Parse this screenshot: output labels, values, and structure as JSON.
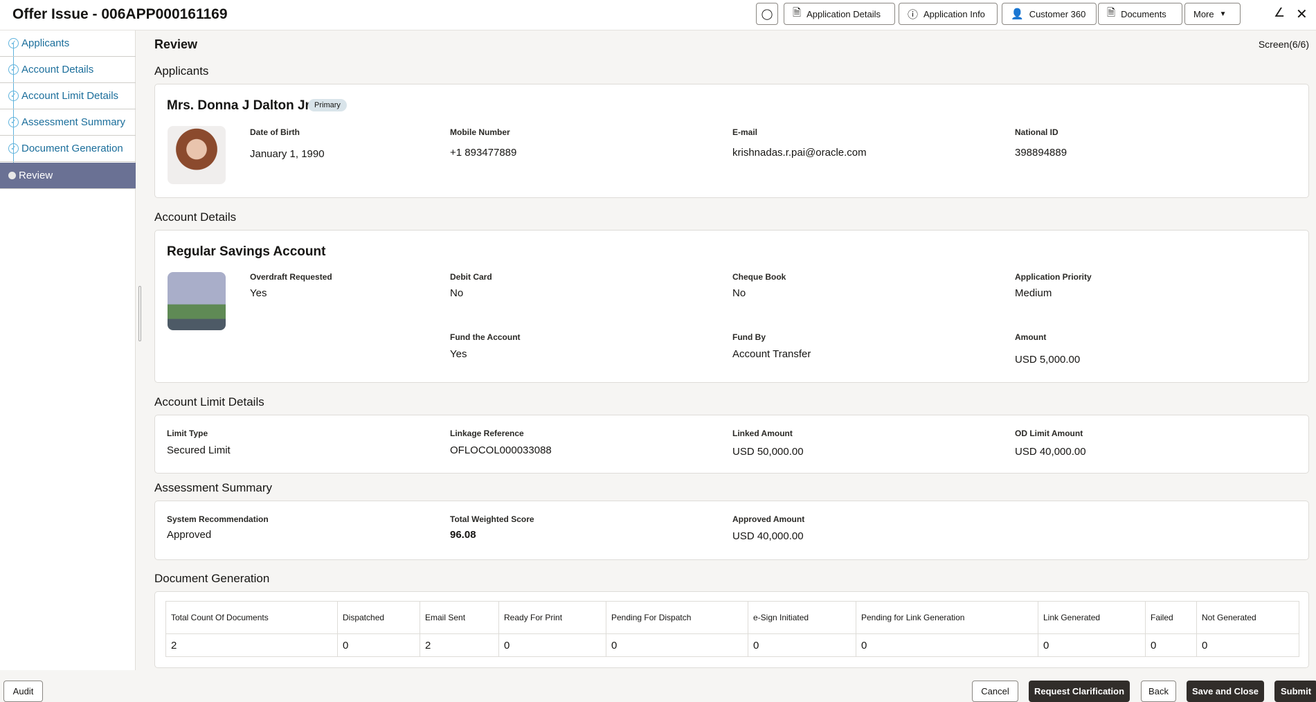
{
  "header": {
    "title": "Offer Issue - 006APP000161169",
    "buttons": [
      {
        "label": "Application Details",
        "icon": "document-icon"
      },
      {
        "label": "Application Info",
        "icon": "info-icon"
      },
      {
        "label": "Customer 360",
        "icon": "contact-card-icon"
      },
      {
        "label": "Documents",
        "icon": "document-icon"
      },
      {
        "label": "More",
        "icon": "caret-down-icon"
      }
    ]
  },
  "sidebar": {
    "items": [
      {
        "label": "Applicants",
        "state": "done"
      },
      {
        "label": "Account Details",
        "state": "done"
      },
      {
        "label": "Account Limit Details",
        "state": "done"
      },
      {
        "label": "Assessment Summary",
        "state": "done"
      },
      {
        "label": "Document Generation",
        "state": "done"
      },
      {
        "label": "Review",
        "state": "active"
      }
    ]
  },
  "page": {
    "title": "Review",
    "screen": "Screen(6/6)"
  },
  "applicants": {
    "heading": "Applicants",
    "name": "Mrs. Donna J Dalton Jr.",
    "badge": "Primary",
    "fields": [
      {
        "label": "Date of Birth",
        "value": "January 1, 1990"
      },
      {
        "label": "Mobile Number",
        "value": "+1 893477889"
      },
      {
        "label": "E-mail",
        "value": "krishnadas.r.pai@oracle.com"
      },
      {
        "label": "National ID",
        "value": "398894889"
      }
    ]
  },
  "account": {
    "heading": "Account Details",
    "name": "Regular Savings Account",
    "fields": [
      {
        "label": "Overdraft Requested",
        "value": "Yes"
      },
      {
        "label": "Debit Card",
        "value": "No"
      },
      {
        "label": "Cheque Book",
        "value": "No"
      },
      {
        "label": "Application Priority",
        "value": "Medium"
      },
      {
        "label": "Fund the Account",
        "value": "Yes"
      },
      {
        "label": "Fund By",
        "value": "Account Transfer"
      },
      {
        "label": "Amount",
        "value": "USD 5,000.00"
      }
    ]
  },
  "limit": {
    "heading": "Account Limit Details",
    "fields": [
      {
        "label": "Limit Type",
        "value": "Secured Limit"
      },
      {
        "label": "Linkage Reference",
        "value": "OFLOCOL000033088"
      },
      {
        "label": "Linked Amount",
        "value": "USD 50,000.00"
      },
      {
        "label": "OD Limit Amount",
        "value": "USD 40,000.00"
      }
    ]
  },
  "assessment": {
    "heading": "Assessment Summary",
    "fields": [
      {
        "label": "System Recommendation",
        "value": "Approved"
      },
      {
        "label": "Total Weighted Score",
        "value": "96.08"
      },
      {
        "label": "Approved Amount",
        "value": "USD 40,000.00"
      }
    ]
  },
  "docgen": {
    "heading": "Document Generation",
    "columns": [
      "Total Count Of Documents",
      "Dispatched",
      "Email Sent",
      "Ready For Print",
      "Pending For Dispatch",
      "e-Sign Initiated",
      "Pending for Link Generation",
      "Link Generated",
      "Failed",
      "Not Generated"
    ],
    "values": [
      "2",
      "0",
      "2",
      "0",
      "0",
      "0",
      "0",
      "0",
      "0",
      "0"
    ]
  },
  "footer": {
    "audit": "Audit",
    "cancel": "Cancel",
    "request": "Request Clarification",
    "back": "Back",
    "save": "Save and Close",
    "submit": "Submit"
  }
}
